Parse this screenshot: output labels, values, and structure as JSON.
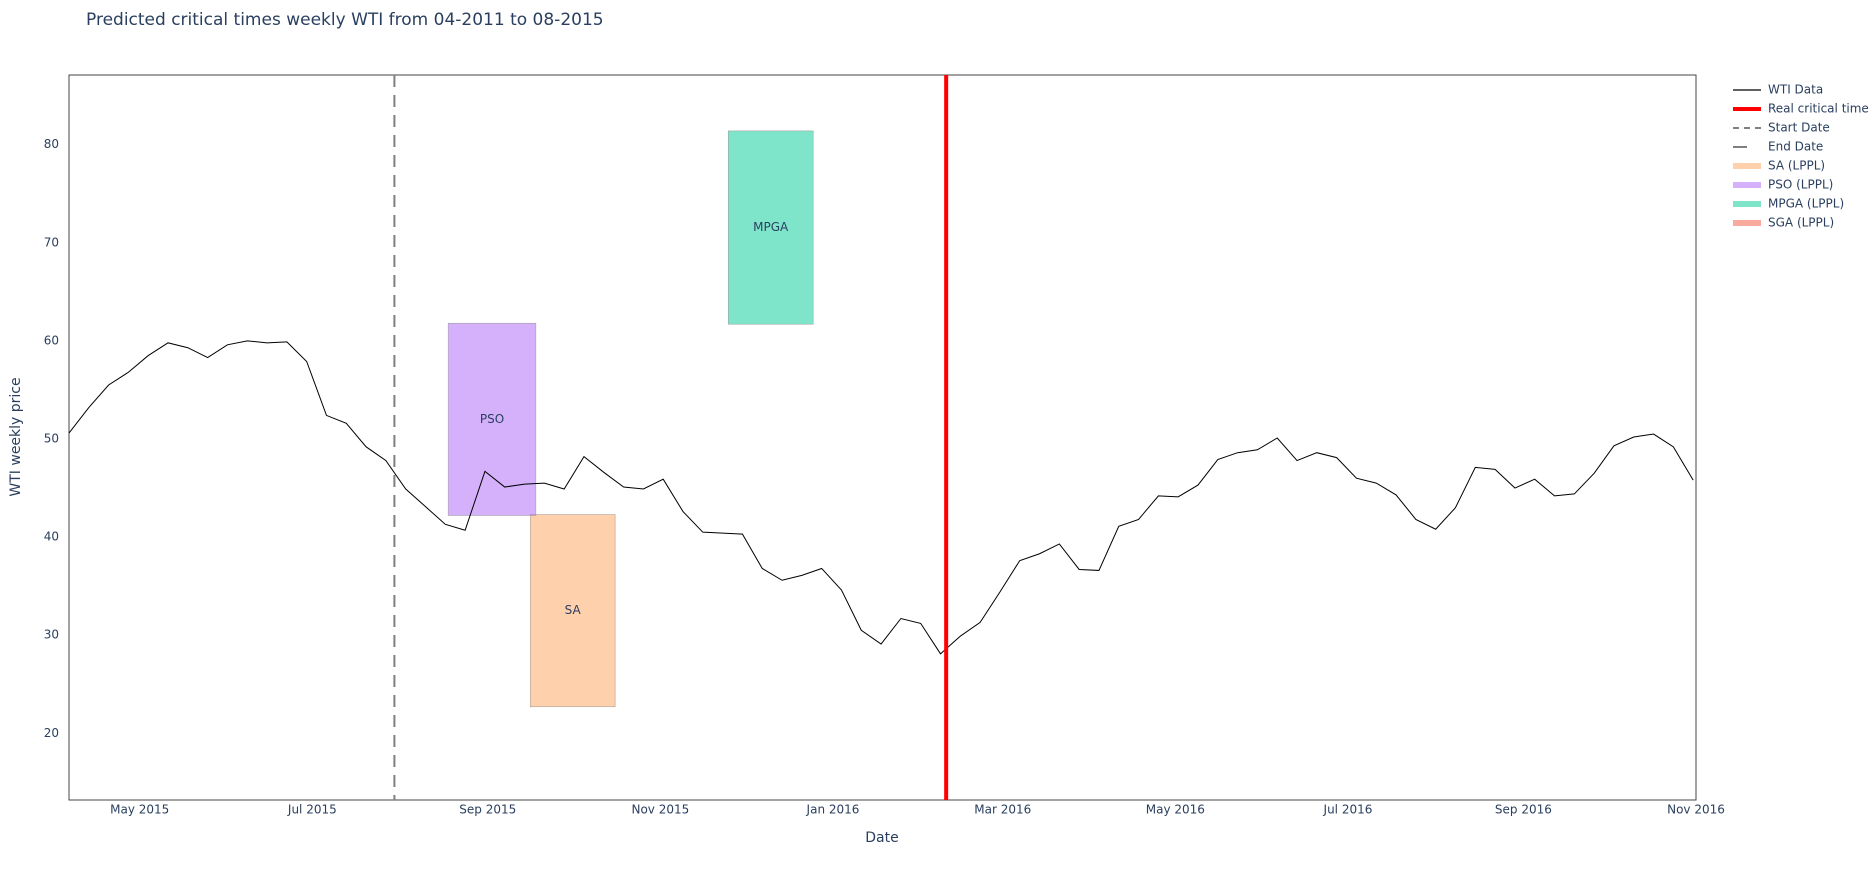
{
  "chart_data": {
    "type": "line",
    "title": "Predicted critical times weekly WTI from 04-2011 to 08-2015",
    "x_label": "Date",
    "y_label": "WTI weekly price",
    "x": [
      "2015-04-06",
      "2015-04-13",
      "2015-04-20",
      "2015-04-27",
      "2015-05-04",
      "2015-05-11",
      "2015-05-18",
      "2015-05-25",
      "2015-06-01",
      "2015-06-08",
      "2015-06-15",
      "2015-06-22",
      "2015-06-29",
      "2015-07-06",
      "2015-07-13",
      "2015-07-20",
      "2015-07-27",
      "2015-08-03",
      "2015-08-10",
      "2015-08-17",
      "2015-08-24",
      "2015-08-31",
      "2015-09-07",
      "2015-09-14",
      "2015-09-21",
      "2015-09-28",
      "2015-10-05",
      "2015-10-12",
      "2015-10-19",
      "2015-10-26",
      "2015-11-02",
      "2015-11-09",
      "2015-11-16",
      "2015-11-23",
      "2015-11-30",
      "2015-12-07",
      "2015-12-14",
      "2015-12-21",
      "2015-12-28",
      "2016-01-04",
      "2016-01-11",
      "2016-01-18",
      "2016-01-25",
      "2016-02-01",
      "2016-02-08",
      "2016-02-15",
      "2016-02-22",
      "2016-02-29",
      "2016-03-07",
      "2016-03-14",
      "2016-03-21",
      "2016-03-28",
      "2016-04-04",
      "2016-04-11",
      "2016-04-18",
      "2016-04-25",
      "2016-05-02",
      "2016-05-09",
      "2016-05-16",
      "2016-05-23",
      "2016-05-30",
      "2016-06-06",
      "2016-06-13",
      "2016-06-20",
      "2016-06-27",
      "2016-07-04",
      "2016-07-11",
      "2016-07-18",
      "2016-07-25",
      "2016-08-01",
      "2016-08-08",
      "2016-08-15",
      "2016-08-22",
      "2016-08-29",
      "2016-09-05",
      "2016-09-12",
      "2016-09-19",
      "2016-09-26",
      "2016-10-03",
      "2016-10-10",
      "2016-10-17",
      "2016-10-24",
      "2016-10-31"
    ],
    "series": [
      {
        "name": "WTI Data",
        "color": "#000000",
        "values": [
          50.6,
          53.2,
          55.5,
          56.8,
          58.5,
          59.8,
          59.3,
          58.3,
          59.6,
          60.0,
          59.8,
          59.9,
          57.9,
          52.4,
          51.6,
          49.2,
          47.8,
          44.9,
          43.1,
          41.3,
          40.7,
          46.7,
          45.1,
          45.4,
          45.5,
          44.9,
          48.2,
          46.6,
          45.1,
          44.9,
          45.9,
          42.6,
          40.5,
          40.4,
          40.3,
          36.8,
          35.6,
          36.1,
          36.8,
          34.6,
          30.5,
          29.1,
          31.7,
          31.2,
          28.1,
          29.9,
          31.3,
          34.4,
          37.6,
          38.3,
          39.3,
          36.7,
          36.6,
          41.1,
          41.8,
          44.2,
          44.1,
          45.3,
          47.9,
          48.6,
          48.9,
          50.1,
          47.8,
          48.6,
          48.1,
          46.0,
          45.5,
          44.3,
          41.8,
          40.8,
          43.0,
          47.1,
          46.9,
          45.0,
          45.9,
          44.2,
          44.4,
          46.5,
          49.3,
          50.2,
          50.5,
          49.2,
          45.8
        ]
      }
    ],
    "vlines": [
      {
        "name": "Real critical time",
        "color": "#ff0000",
        "dash": "solid",
        "x": "2016-02-10"
      },
      {
        "name": "Start Date",
        "color": "#808080",
        "dash": "dash",
        "x": "2015-07-30"
      },
      {
        "name": "End Date",
        "color": "#808080",
        "dash": "longdash"
      }
    ],
    "regions": [
      {
        "name": "SA (LPPL)",
        "label": "SA",
        "color": "#FFA15A",
        "x": [
          "2015-09-16",
          "2015-10-16"
        ],
        "y": [
          22.7,
          42.3
        ]
      },
      {
        "name": "PSO (LPPL)",
        "label": "PSO",
        "color": "#AB63FA",
        "x": [
          "2015-08-18",
          "2015-09-18"
        ],
        "y": [
          42.2,
          61.8
        ]
      },
      {
        "name": "MPGA (LPPL)",
        "label": "MPGA",
        "color": "#00CC96",
        "x": [
          "2015-11-25",
          "2015-12-25"
        ],
        "y": [
          61.7,
          81.4
        ]
      },
      {
        "name": "SGA (LPPL)",
        "color": "#EF553B"
      }
    ],
    "xlim": [
      "2015-04-06",
      "2016-11-01"
    ],
    "xticks": [
      {
        "value": "2015-05-01",
        "label": "May 2015"
      },
      {
        "value": "2015-07-01",
        "label": "Jul 2015"
      },
      {
        "value": "2015-09-01",
        "label": "Sep 2015"
      },
      {
        "value": "2015-11-01",
        "label": "Nov 2015"
      },
      {
        "value": "2016-01-01",
        "label": "Jan 2016"
      },
      {
        "value": "2016-03-01",
        "label": "Mar 2016"
      },
      {
        "value": "2016-05-01",
        "label": "May 2016"
      },
      {
        "value": "2016-07-01",
        "label": "Jul 2016"
      },
      {
        "value": "2016-09-01",
        "label": "Sep 2016"
      },
      {
        "value": "2016-11-01",
        "label": "Nov 2016"
      }
    ],
    "ylim": [
      13.2,
      87.1
    ],
    "yticks": [
      20,
      30,
      40,
      50,
      60,
      70,
      80
    ],
    "grid": false,
    "legend": "right"
  }
}
